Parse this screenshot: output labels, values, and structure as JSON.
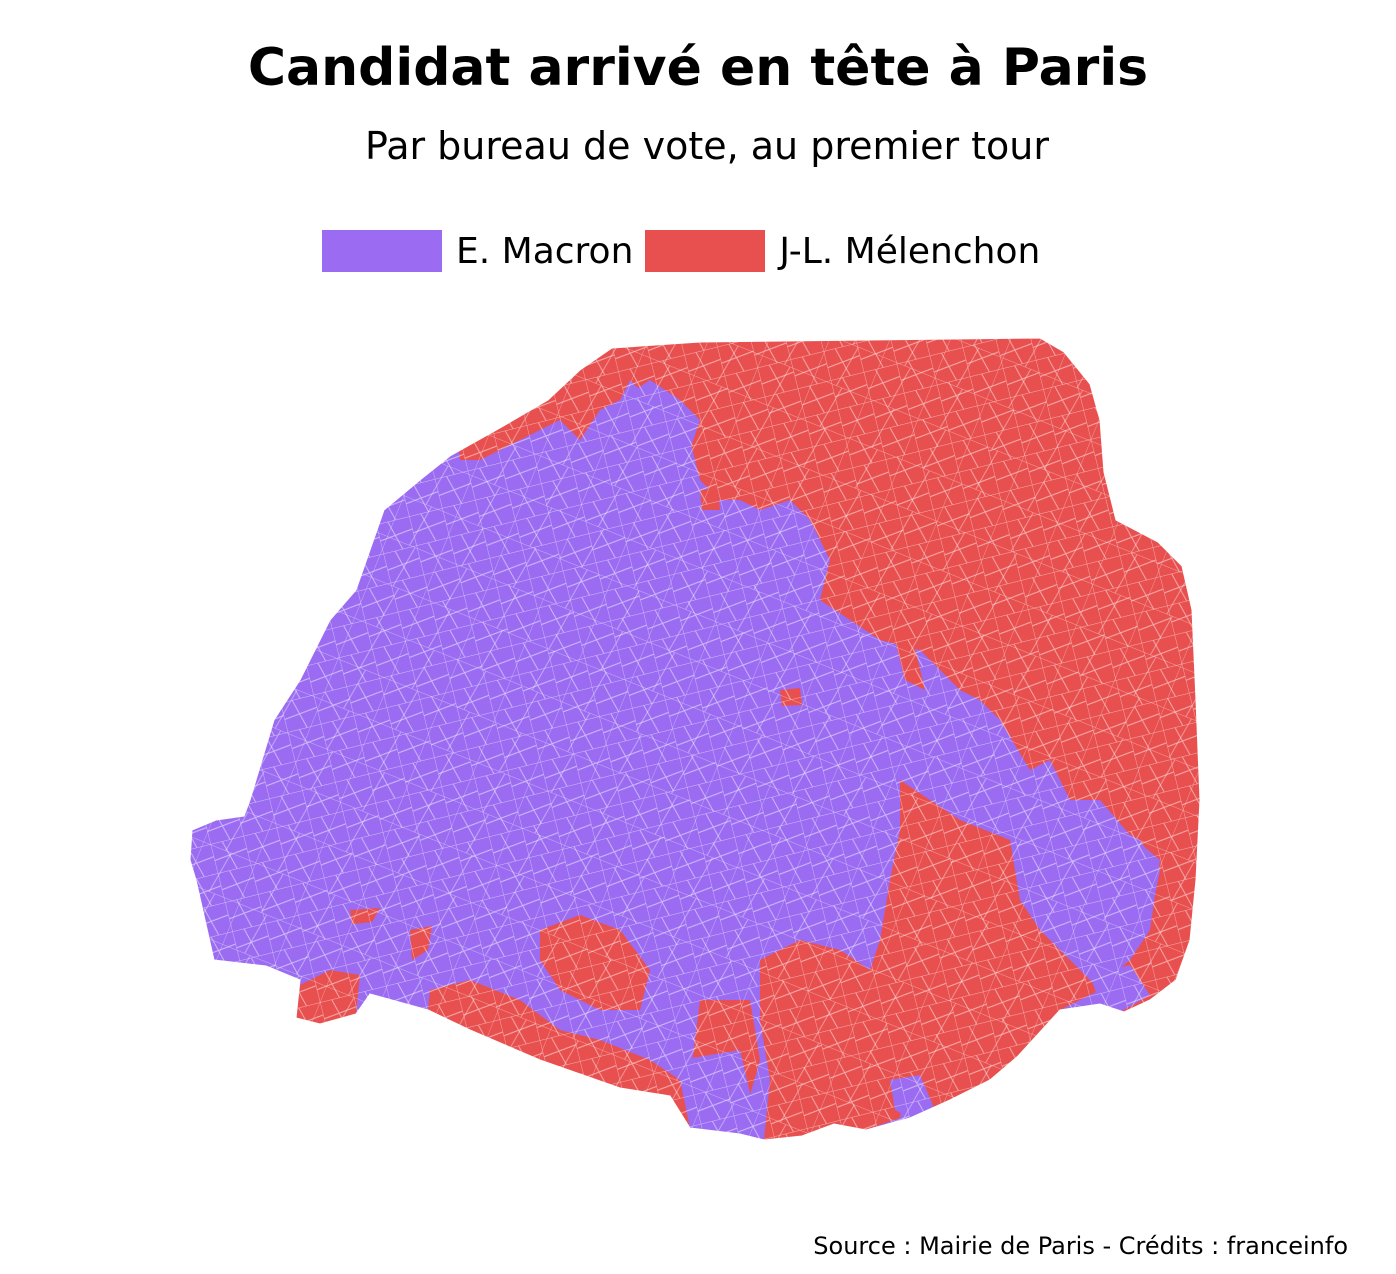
{
  "title": "Candidat arrivé en tête à Paris",
  "subtitle": "Par bureau de vote, au premier tour",
  "legend": {
    "items": [
      {
        "label": "E. Macron",
        "color": "#9b6cf2"
      },
      {
        "label": "J-L. Mélenchon",
        "color": "#e8504f"
      }
    ]
  },
  "map": {
    "region": "Paris",
    "colors": {
      "macron": "#9b6cf2",
      "melenchon": "#e8504f",
      "border": "#ffffff"
    }
  },
  "credits": "Source : Mairie de Paris - Crédits : franceinfo"
}
